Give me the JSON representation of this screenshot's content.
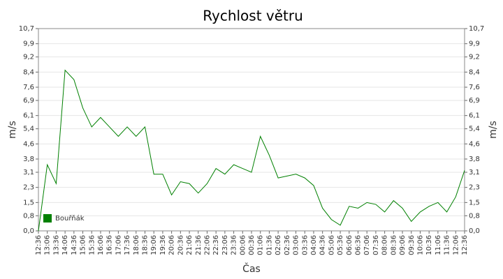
{
  "chart_data": {
    "type": "line",
    "title": "Rychlost větru",
    "x_label": "Čas",
    "y_label": "m/s",
    "y2_label": "m/s",
    "categories": [
      "12:36",
      "13:06",
      "13:36",
      "14:06",
      "14:36",
      "15:06",
      "15:36",
      "16:06",
      "16:36",
      "17:06",
      "17:36",
      "18:06",
      "18:36",
      "19:06",
      "19:36",
      "20:06",
      "20:36",
      "21:06",
      "21:36",
      "22:06",
      "22:36",
      "23:06",
      "23:36",
      "00:06",
      "00:36",
      "01:06",
      "01:36",
      "02:06",
      "02:36",
      "03:06",
      "03:36",
      "04:06",
      "04:36",
      "05:06",
      "05:36",
      "06:06",
      "06:36",
      "07:06",
      "07:36",
      "08:06",
      "08:36",
      "09:06",
      "09:36",
      "10:06",
      "10:36",
      "11:06",
      "11:36",
      "12:06",
      "12:36"
    ],
    "series": [
      {
        "name": "Bouřňák",
        "color": "#008000",
        "values": [
          0,
          3.5,
          2.5,
          8.5,
          8.0,
          6.5,
          5.5,
          6.0,
          5.5,
          5.0,
          5.5,
          5.0,
          5.5,
          3.0,
          3.0,
          1.9,
          2.6,
          2.5,
          2.0,
          2.5,
          3.3,
          3.0,
          3.5,
          3.3,
          3.1,
          5.0,
          4.0,
          2.8,
          2.9,
          3.0,
          2.8,
          2.4,
          1.2,
          0.6,
          0.3,
          1.3,
          1.2,
          1.5,
          1.4,
          1.0,
          1.6,
          1.2,
          0.5,
          1.0,
          1.3,
          1.5,
          1.0,
          1.8,
          3.2
        ]
      }
    ],
    "ylim": [
      0,
      10.7
    ],
    "yticks": [
      {
        "value": 0,
        "label": "0,0"
      },
      {
        "value": 0.8,
        "label": "0,8"
      },
      {
        "value": 1.5,
        "label": "1,5"
      },
      {
        "value": 2.3,
        "label": "2,3"
      },
      {
        "value": 3.1,
        "label": "3,1"
      },
      {
        "value": 3.8,
        "label": "3,8"
      },
      {
        "value": 4.6,
        "label": "4,6"
      },
      {
        "value": 5.4,
        "label": "5,4"
      },
      {
        "value": 6.1,
        "label": "6,1"
      },
      {
        "value": 6.9,
        "label": "6,9"
      },
      {
        "value": 7.6,
        "label": "7,6"
      },
      {
        "value": 8.4,
        "label": "8,4"
      },
      {
        "value": 9.2,
        "label": "9,2"
      },
      {
        "value": 9.9,
        "label": "9,9"
      },
      {
        "value": 10.7,
        "label": "10,7"
      }
    ],
    "y2lim": [
      0,
      10.7
    ],
    "y2ticks": [
      {
        "value": 0,
        "label": "0,0"
      },
      {
        "value": 0.8,
        "label": "0,8"
      },
      {
        "value": 1.5,
        "label": "1,5"
      },
      {
        "value": 2.3,
        "label": "2,3"
      },
      {
        "value": 3.1,
        "label": "3,1"
      },
      {
        "value": 3.8,
        "label": "3,8"
      },
      {
        "value": 4.6,
        "label": "4,6"
      },
      {
        "value": 5.4,
        "label": "5,4"
      },
      {
        "value": 6.1,
        "label": "6,1"
      },
      {
        "value": 6.9,
        "label": "6,9"
      },
      {
        "value": 7.6,
        "label": "7,6"
      },
      {
        "value": 8.4,
        "label": "8,4"
      },
      {
        "value": 9.2,
        "label": "9,2"
      },
      {
        "value": 9.9,
        "label": "9,9"
      },
      {
        "value": 10.7,
        "label": "10,7"
      }
    ],
    "grid": true,
    "legend": "bottom-left"
  }
}
